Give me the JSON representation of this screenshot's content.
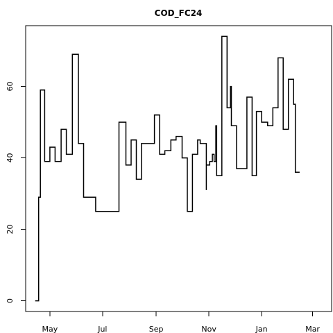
{
  "chart_data": {
    "type": "line",
    "title": "COD_FC24",
    "xlabel": "",
    "ylabel": "",
    "x_tick_labels": [
      "May",
      "Jul",
      "Sep",
      "Nov",
      "Jan",
      "Mar"
    ],
    "x_ticks": [
      "2021-05-01",
      "2021-07-01",
      "2021-09-01",
      "2021-11-01",
      "2022-01-01",
      "2022-03-01"
    ],
    "y_ticks": [
      0,
      20,
      40,
      60
    ],
    "x_range": [
      "2021-04-03",
      "2022-03-23"
    ],
    "ylim": [
      -3.0,
      77.0
    ],
    "grid": false,
    "line_style": "steps",
    "series": [
      {
        "points": [
          [
            "2021-04-14",
            0
          ],
          [
            "2021-04-18",
            0
          ],
          [
            "2021-04-18",
            29
          ],
          [
            "2021-04-20",
            29
          ],
          [
            "2021-04-20",
            59
          ],
          [
            "2021-04-25",
            59
          ],
          [
            "2021-04-25",
            39
          ],
          [
            "2021-05-01",
            39
          ],
          [
            "2021-05-01",
            43
          ],
          [
            "2021-05-07",
            43
          ],
          [
            "2021-05-07",
            39
          ],
          [
            "2021-05-14",
            39
          ],
          [
            "2021-05-14",
            48
          ],
          [
            "2021-05-20",
            48
          ],
          [
            "2021-05-20",
            41
          ],
          [
            "2021-05-27",
            41
          ],
          [
            "2021-05-27",
            69
          ],
          [
            "2021-06-03",
            69
          ],
          [
            "2021-06-03",
            44
          ],
          [
            "2021-06-09",
            44
          ],
          [
            "2021-06-09",
            29
          ],
          [
            "2021-06-23",
            29
          ],
          [
            "2021-06-23",
            25
          ],
          [
            "2021-07-20",
            25
          ],
          [
            "2021-07-20",
            50
          ],
          [
            "2021-07-28",
            50
          ],
          [
            "2021-07-28",
            38
          ],
          [
            "2021-08-03",
            38
          ],
          [
            "2021-08-03",
            45
          ],
          [
            "2021-08-09",
            45
          ],
          [
            "2021-08-09",
            34
          ],
          [
            "2021-08-15",
            34
          ],
          [
            "2021-08-15",
            44
          ],
          [
            "2021-08-30",
            44
          ],
          [
            "2021-08-30",
            52
          ],
          [
            "2021-09-05",
            52
          ],
          [
            "2021-09-05",
            41
          ],
          [
            "2021-09-11",
            41
          ],
          [
            "2021-09-11",
            42
          ],
          [
            "2021-09-18",
            42
          ],
          [
            "2021-09-18",
            45
          ],
          [
            "2021-09-24",
            45
          ],
          [
            "2021-09-24",
            46
          ],
          [
            "2021-10-01",
            46
          ],
          [
            "2021-10-01",
            40
          ],
          [
            "2021-10-07",
            40
          ],
          [
            "2021-10-07",
            25
          ],
          [
            "2021-10-13",
            25
          ],
          [
            "2021-10-13",
            41
          ],
          [
            "2021-10-19",
            41
          ],
          [
            "2021-10-19",
            45
          ],
          [
            "2021-10-22",
            45
          ],
          [
            "2021-10-22",
            44
          ],
          [
            "2021-10-29",
            44
          ],
          [
            "2021-10-29",
            31
          ],
          [
            "2021-10-29",
            38
          ],
          [
            "2021-11-02",
            38
          ],
          [
            "2021-11-02",
            39
          ],
          [
            "2021-11-05",
            39
          ],
          [
            "2021-11-05",
            41
          ],
          [
            "2021-11-07",
            41
          ],
          [
            "2021-11-07",
            39
          ],
          [
            "2021-11-09",
            39
          ],
          [
            "2021-11-09",
            49
          ],
          [
            "2021-11-10",
            49
          ],
          [
            "2021-11-10",
            35
          ],
          [
            "2021-11-16",
            35
          ],
          [
            "2021-11-16",
            74
          ],
          [
            "2021-11-22",
            74
          ],
          [
            "2021-11-22",
            54
          ],
          [
            "2021-11-26",
            54
          ],
          [
            "2021-11-26",
            60
          ],
          [
            "2021-11-27",
            60
          ],
          [
            "2021-11-27",
            49
          ],
          [
            "2021-12-03",
            49
          ],
          [
            "2021-12-03",
            37
          ],
          [
            "2021-12-15",
            37
          ],
          [
            "2021-12-15",
            57
          ],
          [
            "2021-12-21",
            57
          ],
          [
            "2021-12-21",
            35
          ],
          [
            "2021-12-26",
            35
          ],
          [
            "2021-12-26",
            53
          ],
          [
            "2022-01-01",
            53
          ],
          [
            "2022-01-01",
            50
          ],
          [
            "2022-01-08",
            50
          ],
          [
            "2022-01-08",
            49
          ],
          [
            "2022-01-14",
            49
          ],
          [
            "2022-01-14",
            54
          ],
          [
            "2022-01-20",
            54
          ],
          [
            "2022-01-20",
            68
          ],
          [
            "2022-01-26",
            68
          ],
          [
            "2022-01-26",
            48
          ],
          [
            "2022-02-01",
            48
          ],
          [
            "2022-02-01",
            62
          ],
          [
            "2022-02-07",
            62
          ],
          [
            "2022-02-07",
            55
          ],
          [
            "2022-02-09",
            55
          ],
          [
            "2022-02-09",
            36
          ],
          [
            "2022-02-14",
            36
          ]
        ]
      }
    ]
  }
}
